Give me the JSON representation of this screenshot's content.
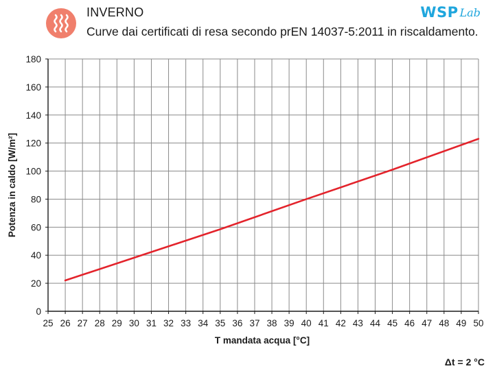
{
  "header": {
    "season": "INVERNO",
    "subtitle": "Curve dai certificati di resa secondo prEN 14037-5:2011 in riscaldamento.",
    "icon": "heating-waves-icon",
    "icon_color": "#f07f6c",
    "brand_main": "WSP",
    "brand_lab": "Lab",
    "brand_color": "#1fa6dd"
  },
  "chart_data": {
    "type": "line",
    "xlabel": "T mandata acqua [°C]",
    "ylabel": "Potenza in caldo [W/m²]",
    "xlim": [
      25,
      50
    ],
    "ylim": [
      0,
      180
    ],
    "x_ticks": [
      25,
      26,
      27,
      28,
      29,
      30,
      31,
      32,
      33,
      34,
      35,
      36,
      37,
      38,
      39,
      40,
      41,
      42,
      43,
      44,
      45,
      46,
      47,
      48,
      49,
      50
    ],
    "y_ticks": [
      0,
      20,
      40,
      60,
      80,
      100,
      120,
      140,
      160,
      180
    ],
    "grid": true,
    "series": [
      {
        "color": "#e3232b",
        "x": [
          26,
          30,
          35,
          40,
          45,
          50
        ],
        "y": [
          22,
          38.2,
          58.5,
          80,
          101,
          123
        ]
      }
    ],
    "annotation": "Δt = 2 °C"
  }
}
